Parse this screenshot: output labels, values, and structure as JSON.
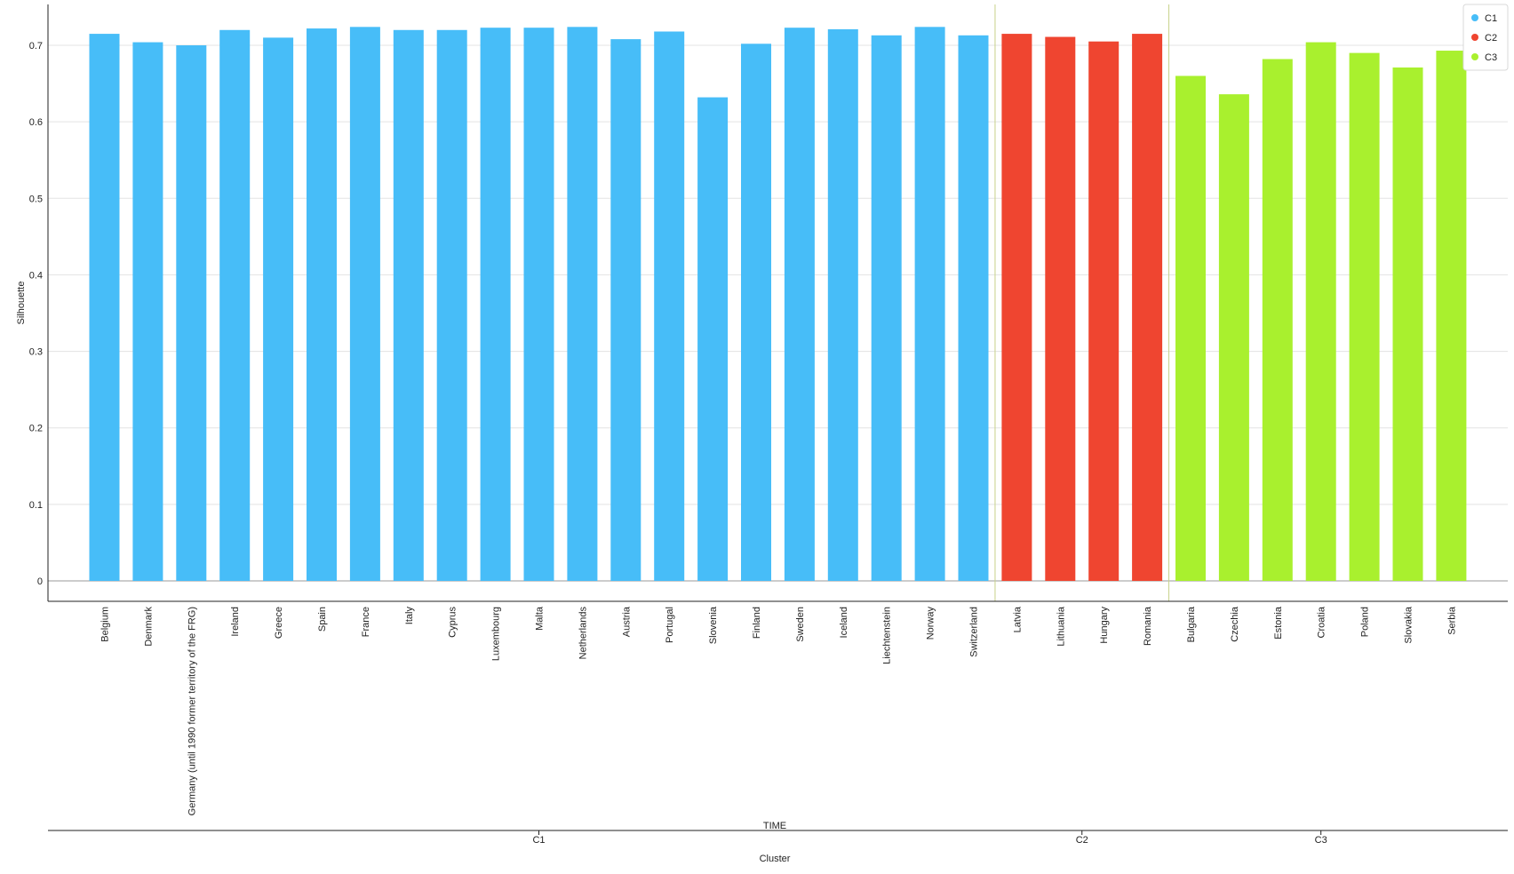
{
  "chart_data": {
    "type": "bar",
    "ylabel": "Silhouette",
    "xlabel_group": "TIME",
    "xlabel_cluster": "Cluster",
    "ylim": [
      0,
      0.73
    ],
    "yticks": [
      0,
      0.1,
      0.2,
      0.3,
      0.4,
      0.5,
      0.6,
      0.7
    ],
    "ytick_labels": [
      "0",
      "0.1",
      "0.2",
      "0.3",
      "0.4",
      "0.5",
      "0.6",
      "0.7"
    ],
    "grid": true,
    "legend_position": "top-right",
    "colors": {
      "C1": "#47bdf8",
      "C2": "#ef4530",
      "C3": "#a9f02e",
      "separator": "#c8d28a"
    },
    "legend": [
      {
        "name": "C1",
        "color": "#47bdf8"
      },
      {
        "name": "C2",
        "color": "#ef4530"
      },
      {
        "name": "C3",
        "color": "#a9f02e"
      }
    ],
    "clusters": [
      {
        "name": "C1",
        "categories": [
          "Belgium",
          "Denmark",
          "Germany (until 1990 former territory of the FRG)",
          "Ireland",
          "Greece",
          "Spain",
          "France",
          "Italy",
          "Cyprus",
          "Luxembourg",
          "Malta",
          "Netherlands",
          "Austria",
          "Portugal",
          "Slovenia",
          "Finland",
          "Sweden",
          "Iceland",
          "Liechtenstein",
          "Norway",
          "Switzerland"
        ],
        "values": [
          0.715,
          0.704,
          0.7,
          0.72,
          0.71,
          0.722,
          0.724,
          0.72,
          0.72,
          0.723,
          0.723,
          0.724,
          0.708,
          0.718,
          0.632,
          0.702,
          0.723,
          0.721,
          0.713,
          0.724,
          0.713
        ]
      },
      {
        "name": "C2",
        "categories": [
          "Latvia",
          "Lithuania",
          "Hungary",
          "Romania"
        ],
        "values": [
          0.715,
          0.711,
          0.705,
          0.715
        ]
      },
      {
        "name": "C3",
        "categories": [
          "Bulgaria",
          "Czechia",
          "Estonia",
          "Croatia",
          "Poland",
          "Slovakia",
          "Serbia"
        ],
        "values": [
          0.66,
          0.636,
          0.682,
          0.704,
          0.69,
          0.671,
          0.693
        ]
      }
    ]
  }
}
